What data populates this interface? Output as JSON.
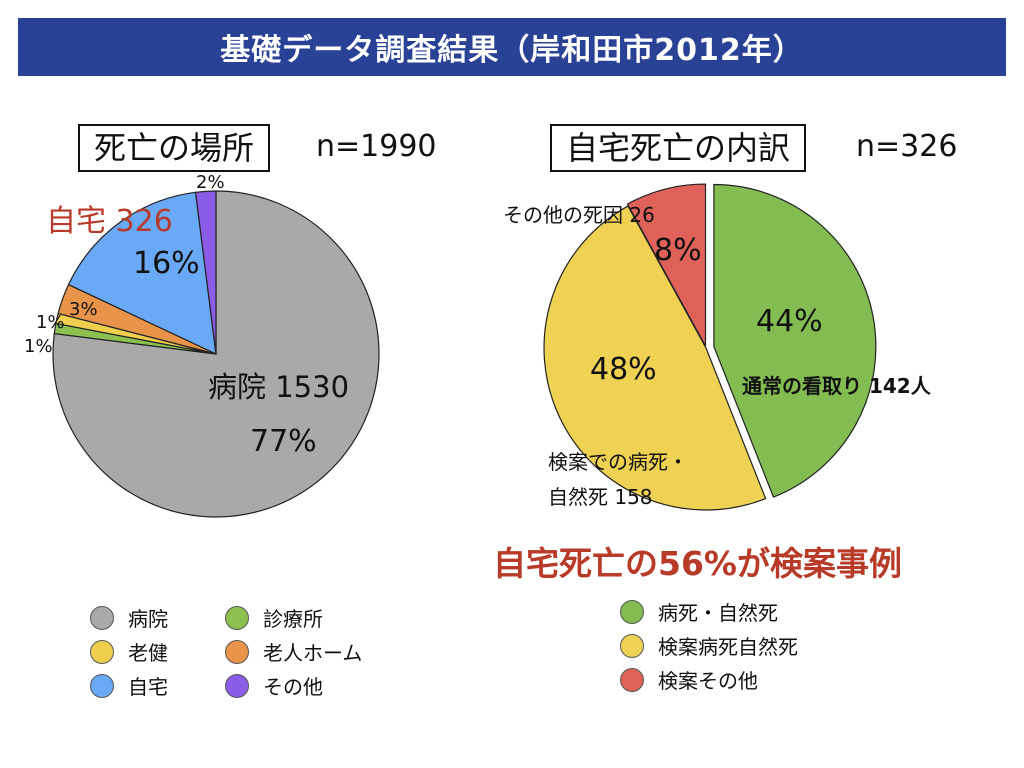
{
  "banner": {
    "title": "基礎データ調査結果（岸和田市2012年）"
  },
  "headline": "自宅死亡の56%が検案事例",
  "chart_data": [
    {
      "type": "pie",
      "title": "死亡の場所",
      "n_label": "n=1990",
      "slices": [
        {
          "name": "病院",
          "value": 77,
          "color": "#a9a9a9",
          "label": "病院 1530",
          "pct_label": "77%"
        },
        {
          "name": "診療所",
          "value": 1,
          "color": "#8cc152",
          "pct_label": "1%"
        },
        {
          "name": "老健",
          "value": 1,
          "color": "#f0cf4f",
          "pct_label": "1%"
        },
        {
          "name": "老人ホーム",
          "value": 3,
          "color": "#e8944a",
          "pct_label": "3%"
        },
        {
          "name": "自宅",
          "value": 16,
          "color": "#6aa9f5",
          "pct_label": "16%",
          "callout": "自宅 326"
        },
        {
          "name": "その他",
          "value": 2,
          "color": "#8b5ce6",
          "pct_label": "2%"
        }
      ],
      "legend": [
        {
          "label": "病院",
          "color": "#a9a9a9"
        },
        {
          "label": "診療所",
          "color": "#8cc152"
        },
        {
          "label": "老健",
          "color": "#f0cf4f"
        },
        {
          "label": "老人ホーム",
          "color": "#e8944a"
        },
        {
          "label": "自宅",
          "color": "#6aa9f5"
        },
        {
          "label": "その他",
          "color": "#8b5ce6"
        }
      ]
    },
    {
      "type": "pie",
      "title": "自宅死亡の内訳",
      "n_label": "n=326",
      "slices": [
        {
          "name": "病死・自然死",
          "value": 44,
          "color": "#83bd52",
          "pct_label": "44%",
          "label": "通常の看取り 142人"
        },
        {
          "name": "検案病死自然死",
          "value": 48,
          "color": "#efd253",
          "pct_label": "48%",
          "label_lines": [
            "検案での病死・",
            "自然死 158"
          ]
        },
        {
          "name": "検案その他",
          "value": 8,
          "color": "#de6259",
          "pct_label": "8%",
          "label": "その他の死因 26"
        }
      ],
      "legend": [
        {
          "label": "病死・自然死",
          "color": "#83bd52"
        },
        {
          "label": "検案病死自然死",
          "color": "#efd253"
        },
        {
          "label": "検案その他",
          "color": "#de6259"
        }
      ]
    }
  ]
}
